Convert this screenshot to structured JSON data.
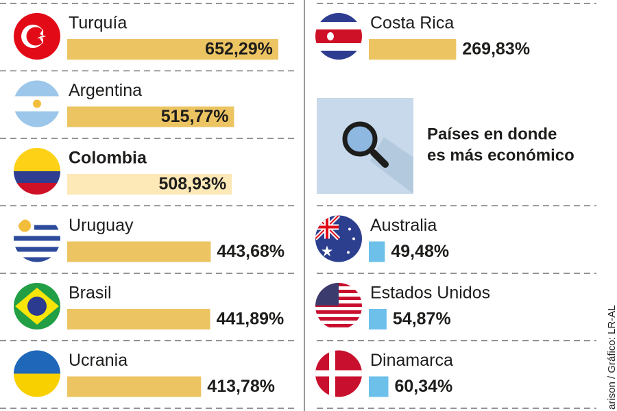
{
  "left_rows": [
    {
      "name": "Turquía",
      "value": 652.29,
      "value_label": "652,29%"
    },
    {
      "name": "Argentina",
      "value": 515.77,
      "value_label": "515,77%"
    },
    {
      "name": "Colombia",
      "value": 508.93,
      "value_label": "508,93%",
      "highlight": true
    },
    {
      "name": "Uruguay",
      "value": 443.68,
      "value_label": "443,68%"
    },
    {
      "name": "Brasil",
      "value": 441.89,
      "value_label": "441,89%"
    },
    {
      "name": "Ucrania",
      "value": 413.78,
      "value_label": "413,78%"
    }
  ],
  "right_top_rows": [
    {
      "name": "Costa Rica",
      "value": 269.83,
      "value_label": "269,83%"
    }
  ],
  "callout": {
    "lines": [
      "Países en donde",
      "es más económico"
    ]
  },
  "right_bottom_rows": [
    {
      "name": "Australia",
      "value": 49.48,
      "value_label": "49,48%"
    },
    {
      "name": "Estados Unidos",
      "value": 54.87,
      "value_label": "54,87%"
    },
    {
      "name": "Dinamarca",
      "value": 60.34,
      "value_label": "60,34%"
    }
  ],
  "bar_color": "#ecc462",
  "highlight_color": "#fde8b8",
  "cheap_bar_color": "#6cc0ea",
  "credit": "arison / Gráfico: LR-AL"
}
